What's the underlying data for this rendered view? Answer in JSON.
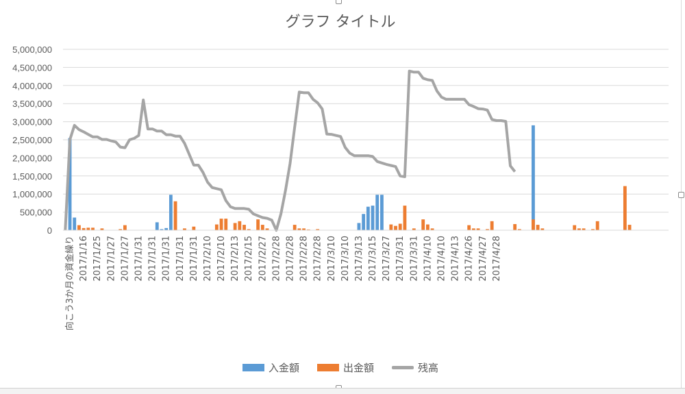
{
  "window": {
    "sheet_strip_label": ""
  },
  "chart_data": {
    "type": "bar+line",
    "title": "グラフ タイトル",
    "xlabel": "",
    "ylabel": "",
    "ylim": [
      0,
      5000000
    ],
    "yticks": [
      "0",
      "500,000",
      "1,000,000",
      "1,500,000",
      "2,000,000",
      "2,500,000",
      "3,000,000",
      "3,500,000",
      "4,000,000",
      "4,500,000",
      "5,000,000"
    ],
    "grid": true,
    "legend_position": "bottom",
    "xticklabels": [
      "向こう3か月の資金繰り",
      "2017/1/16",
      "2017/1/25",
      "2017/1/27",
      "2017/1/27",
      "2017/1/31",
      "2017/1/31",
      "2017/1/31",
      "2017/1/31",
      "2017/1/31",
      "2017/2/10",
      "2017/2/10",
      "2017/2/13",
      "2017/2/15",
      "2017/2/27",
      "2017/2/28",
      "2017/2/28",
      "2017/2/28",
      "2017/2/28",
      "2017/3/10",
      "2017/3/10",
      "2017/3/13",
      "2017/3/15",
      "2017/3/27",
      "2017/3/31",
      "2017/3/31",
      "2017/4/10",
      "2017/4/10",
      "2017/4/13",
      "2017/4/26",
      "2017/4/27",
      "2017/4/28"
    ],
    "points_per_label": 3,
    "series": [
      {
        "name": "入金額",
        "kind": "bar",
        "color": "#5b9bd5",
        "values": [
          0,
          2550000,
          350000,
          0,
          0,
          0,
          0,
          0,
          0,
          0,
          0,
          0,
          0,
          0,
          0,
          0,
          0,
          0,
          0,
          0,
          220000,
          30000,
          60000,
          980000,
          0,
          0,
          0,
          0,
          0,
          0,
          0,
          0,
          0,
          0,
          0,
          0,
          0,
          0,
          0,
          0,
          0,
          0,
          0,
          0,
          0,
          0,
          0,
          0,
          0,
          0,
          0,
          0,
          0,
          0,
          0,
          0,
          0,
          0,
          0,
          0,
          0,
          0,
          0,
          0,
          200000,
          450000,
          650000,
          680000,
          980000,
          980000,
          0,
          0,
          0,
          0,
          0,
          0,
          0,
          0,
          0,
          0,
          0,
          0,
          0,
          0,
          0,
          0,
          0,
          0,
          0,
          0,
          0,
          0,
          0,
          0,
          0,
          0,
          0,
          0,
          0,
          0,
          0,
          0,
          2900000,
          0,
          0,
          0,
          0,
          0,
          0,
          0,
          0,
          0,
          0,
          0,
          0,
          0,
          0,
          0,
          0,
          0,
          0,
          0,
          0,
          0,
          0,
          0,
          0,
          0,
          0,
          0,
          0,
          0
        ]
      },
      {
        "name": "出金額",
        "kind": "bar",
        "color": "#ed7d31",
        "values": [
          0,
          0,
          0,
          140000,
          60000,
          70000,
          70000,
          0,
          50000,
          0,
          0,
          0,
          30000,
          140000,
          0,
          0,
          0,
          0,
          0,
          0,
          0,
          0,
          0,
          0,
          800000,
          0,
          50000,
          0,
          100000,
          0,
          0,
          0,
          0,
          160000,
          320000,
          320000,
          0,
          200000,
          250000,
          150000,
          30000,
          0,
          300000,
          150000,
          50000,
          0,
          0,
          0,
          0,
          0,
          150000,
          50000,
          50000,
          20000,
          0,
          30000,
          0,
          0,
          0,
          0,
          0,
          0,
          0,
          0,
          0,
          0,
          0,
          0,
          0,
          0,
          0,
          160000,
          120000,
          180000,
          680000,
          0,
          50000,
          0,
          300000,
          160000,
          50000,
          0,
          0,
          0,
          0,
          0,
          0,
          0,
          140000,
          50000,
          50000,
          0,
          30000,
          250000,
          0,
          0,
          0,
          0,
          170000,
          30000,
          0,
          0,
          300000,
          150000,
          50000,
          0,
          0,
          0,
          0,
          0,
          0,
          140000,
          50000,
          50000,
          0,
          30000,
          250000,
          0,
          0,
          0,
          0,
          0,
          1220000,
          150000,
          0,
          0,
          0,
          0,
          0,
          0,
          0,
          0,
          0,
          0
        ]
      },
      {
        "name": "残高",
        "kind": "line",
        "color": "#a5a5a5",
        "values": [
          0,
          2500000,
          2900000,
          2780000,
          2720000,
          2650000,
          2580000,
          2580000,
          2510000,
          2510000,
          2470000,
          2440000,
          2300000,
          2280000,
          2500000,
          2540000,
          2620000,
          3600000,
          2800000,
          2800000,
          2740000,
          2740000,
          2640000,
          2640000,
          2600000,
          2600000,
          2400000,
          2100000,
          1800000,
          1800000,
          1600000,
          1330000,
          1180000,
          1150000,
          1120000,
          820000,
          650000,
          600000,
          600000,
          600000,
          580000,
          450000,
          400000,
          350000,
          330000,
          280000,
          0,
          450000,
          1100000,
          1850000,
          2850000,
          3820000,
          3800000,
          3800000,
          3620000,
          3520000,
          3350000,
          2660000,
          2650000,
          2620000,
          2590000,
          2290000,
          2130000,
          2060000,
          2060000,
          2060000,
          2060000,
          2040000,
          1900000,
          1860000,
          1820000,
          1790000,
          1760000,
          1500000,
          1480000,
          4400000,
          4370000,
          4370000,
          4200000,
          4160000,
          4140000,
          3850000,
          3680000,
          3620000,
          3620000,
          3620000,
          3620000,
          3620000,
          3470000,
          3420000,
          3360000,
          3350000,
          3320000,
          3060000,
          3030000,
          3030000,
          3010000,
          1780000,
          1620000
        ]
      }
    ]
  }
}
